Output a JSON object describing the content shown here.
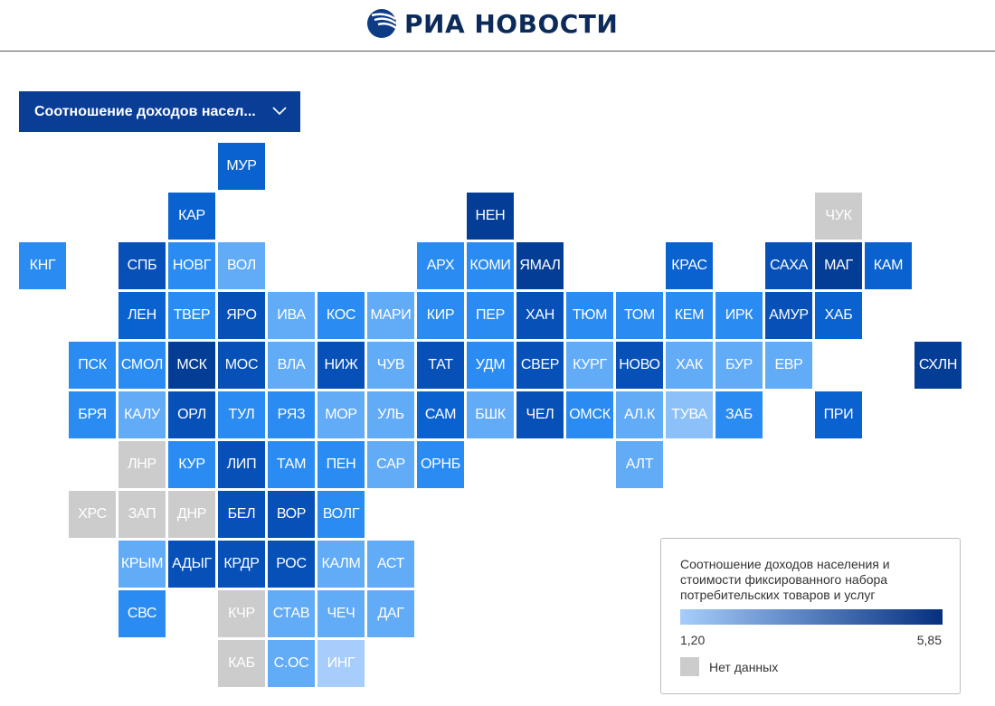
{
  "header": {
    "logo_text": "РИА НОВОСТИ"
  },
  "dropdown": {
    "selected": "Соотношение доходов насел...",
    "icon": "chevron-down-icon"
  },
  "legend": {
    "title": "Соотношение доходов населения и стоимости фиксированного набора потребительских товаров и услуг",
    "min_label": "1,20",
    "max_label": "5,85",
    "gradient_from": "#a6cdfb",
    "gradient_to": "#05307e",
    "no_data_label": "Нет данных",
    "no_data_color": "#cccccc"
  },
  "colors": {
    "l1": "#a6cdfb",
    "tuva": "#8cc0f8",
    "l2": "#62abf7",
    "l3": "#2a8cf2",
    "l4": "#0a62d0",
    "l5": "#0650b8",
    "l6": "#043d96",
    "nd": "#cccccc"
  },
  "regions": [
    {
      "label": "МУР",
      "shade": "l4"
    },
    {
      "label": "КАР",
      "shade": "l4"
    },
    {
      "label": "НЕН",
      "shade": "l6"
    },
    {
      "label": "ЧУК",
      "shade": "nd"
    },
    {
      "label": "КНГ",
      "shade": "l3"
    },
    {
      "label": "СПБ",
      "shade": "l5"
    },
    {
      "label": "НОВГ",
      "shade": "l3"
    },
    {
      "label": "ВОЛ",
      "shade": "l2"
    },
    {
      "label": "АРХ",
      "shade": "l3"
    },
    {
      "label": "КОМИ",
      "shade": "l3"
    },
    {
      "label": "ЯМАЛ",
      "shade": "l6"
    },
    {
      "label": "КРАС",
      "shade": "l4"
    },
    {
      "label": "САХА",
      "shade": "l5"
    },
    {
      "label": "МАГ",
      "shade": "l6"
    },
    {
      "label": "КАМ",
      "shade": "l4"
    },
    {
      "label": "ЛЕН",
      "shade": "l4"
    },
    {
      "label": "ТВЕР",
      "shade": "l3"
    },
    {
      "label": "ЯРО",
      "shade": "l5"
    },
    {
      "label": "ИВА",
      "shade": "l2"
    },
    {
      "label": "КОС",
      "shade": "l3"
    },
    {
      "label": "МАРИ",
      "shade": "l2"
    },
    {
      "label": "КИР",
      "shade": "l3"
    },
    {
      "label": "ПЕР",
      "shade": "l3"
    },
    {
      "label": "ХАН",
      "shade": "l5"
    },
    {
      "label": "ТЮМ",
      "shade": "l3"
    },
    {
      "label": "ТОМ",
      "shade": "l3"
    },
    {
      "label": "КЕМ",
      "shade": "l3"
    },
    {
      "label": "ИРК",
      "shade": "l3"
    },
    {
      "label": "АМУР",
      "shade": "l5"
    },
    {
      "label": "ХАБ",
      "shade": "l4"
    },
    {
      "label": "ПСК",
      "shade": "l3"
    },
    {
      "label": "СМОЛ",
      "shade": "l3"
    },
    {
      "label": "МСК",
      "shade": "l6"
    },
    {
      "label": "МОС",
      "shade": "l5"
    },
    {
      "label": "ВЛА",
      "shade": "l2"
    },
    {
      "label": "НИЖ",
      "shade": "l5"
    },
    {
      "label": "ЧУВ",
      "shade": "l2"
    },
    {
      "label": "ТАТ",
      "shade": "l5"
    },
    {
      "label": "УДМ",
      "shade": "l3"
    },
    {
      "label": "СВЕР",
      "shade": "l5"
    },
    {
      "label": "КУРГ",
      "shade": "l2"
    },
    {
      "label": "НОВО",
      "shade": "l5"
    },
    {
      "label": "ХАК",
      "shade": "l2"
    },
    {
      "label": "БУР",
      "shade": "l2"
    },
    {
      "label": "ЕВР",
      "shade": "l2"
    },
    {
      "label": "СХЛН",
      "shade": "l6"
    },
    {
      "label": "БРЯ",
      "shade": "l3"
    },
    {
      "label": "КАЛУ",
      "shade": "l2"
    },
    {
      "label": "ОРЛ",
      "shade": "l5"
    },
    {
      "label": "ТУЛ",
      "shade": "l3"
    },
    {
      "label": "РЯЗ",
      "shade": "l3"
    },
    {
      "label": "МОР",
      "shade": "l2"
    },
    {
      "label": "УЛЬ",
      "shade": "l2"
    },
    {
      "label": "САМ",
      "shade": "l4"
    },
    {
      "label": "БШК",
      "shade": "l2"
    },
    {
      "label": "ЧЕЛ",
      "shade": "l5"
    },
    {
      "label": "ОМСК",
      "shade": "l3"
    },
    {
      "label": "АЛ.К",
      "shade": "l2"
    },
    {
      "label": "ТУВА",
      "shade": "tuva"
    },
    {
      "label": "ЗАБ",
      "shade": "l3"
    },
    {
      "label": "ПРИ",
      "shade": "l4"
    },
    {
      "label": "ЛНР",
      "shade": "nd"
    },
    {
      "label": "КУР",
      "shade": "l3"
    },
    {
      "label": "ЛИП",
      "shade": "l5"
    },
    {
      "label": "ТАМ",
      "shade": "l3"
    },
    {
      "label": "ПЕН",
      "shade": "l3"
    },
    {
      "label": "САР",
      "shade": "l2"
    },
    {
      "label": "ОРНБ",
      "shade": "l3"
    },
    {
      "label": "АЛТ",
      "shade": "l2"
    },
    {
      "label": "ХРС",
      "shade": "nd"
    },
    {
      "label": "ЗАП",
      "shade": "nd"
    },
    {
      "label": "ДНР",
      "shade": "nd"
    },
    {
      "label": "БЕЛ",
      "shade": "l5"
    },
    {
      "label": "ВОР",
      "shade": "l5"
    },
    {
      "label": "ВОЛГ",
      "shade": "l3"
    },
    {
      "label": "КРЫМ",
      "shade": "l2"
    },
    {
      "label": "АДЫГ",
      "shade": "l5"
    },
    {
      "label": "КРДР",
      "shade": "l5"
    },
    {
      "label": "РОС",
      "shade": "l5"
    },
    {
      "label": "КАЛМ",
      "shade": "l2"
    },
    {
      "label": "АСТ",
      "shade": "l2"
    },
    {
      "label": "СВС",
      "shade": "l3"
    },
    {
      "label": "КЧР",
      "shade": "nd"
    },
    {
      "label": "СТАВ",
      "shade": "l2"
    },
    {
      "label": "ЧЕЧ",
      "shade": "l2"
    },
    {
      "label": "ДАГ",
      "shade": "l2"
    },
    {
      "label": "КАБ",
      "shade": "nd"
    },
    {
      "label": "С.ОС",
      "shade": "l2"
    },
    {
      "label": "ИНГ",
      "shade": "l1"
    }
  ]
}
